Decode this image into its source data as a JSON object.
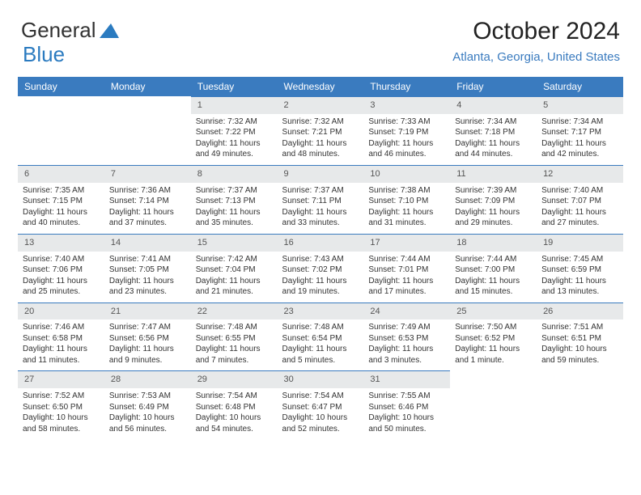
{
  "logo": {
    "text1": "General",
    "text2": "Blue"
  },
  "title": "October 2024",
  "location": "Atlanta, Georgia, United States",
  "colors": {
    "header_bg": "#3a7bbf",
    "header_text": "#ffffff",
    "daynum_bg": "#e7e9ea",
    "daynum_text": "#555555",
    "body_text": "#333333",
    "location_text": "#3a7bbf",
    "page_bg": "#ffffff"
  },
  "days_of_week": [
    "Sunday",
    "Monday",
    "Tuesday",
    "Wednesday",
    "Thursday",
    "Friday",
    "Saturday"
  ],
  "weeks": [
    [
      {
        "n": "",
        "body": ""
      },
      {
        "n": "",
        "body": ""
      },
      {
        "n": "1",
        "body": "Sunrise: 7:32 AM\nSunset: 7:22 PM\nDaylight: 11 hours and 49 minutes."
      },
      {
        "n": "2",
        "body": "Sunrise: 7:32 AM\nSunset: 7:21 PM\nDaylight: 11 hours and 48 minutes."
      },
      {
        "n": "3",
        "body": "Sunrise: 7:33 AM\nSunset: 7:19 PM\nDaylight: 11 hours and 46 minutes."
      },
      {
        "n": "4",
        "body": "Sunrise: 7:34 AM\nSunset: 7:18 PM\nDaylight: 11 hours and 44 minutes."
      },
      {
        "n": "5",
        "body": "Sunrise: 7:34 AM\nSunset: 7:17 PM\nDaylight: 11 hours and 42 minutes."
      }
    ],
    [
      {
        "n": "6",
        "body": "Sunrise: 7:35 AM\nSunset: 7:15 PM\nDaylight: 11 hours and 40 minutes."
      },
      {
        "n": "7",
        "body": "Sunrise: 7:36 AM\nSunset: 7:14 PM\nDaylight: 11 hours and 37 minutes."
      },
      {
        "n": "8",
        "body": "Sunrise: 7:37 AM\nSunset: 7:13 PM\nDaylight: 11 hours and 35 minutes."
      },
      {
        "n": "9",
        "body": "Sunrise: 7:37 AM\nSunset: 7:11 PM\nDaylight: 11 hours and 33 minutes."
      },
      {
        "n": "10",
        "body": "Sunrise: 7:38 AM\nSunset: 7:10 PM\nDaylight: 11 hours and 31 minutes."
      },
      {
        "n": "11",
        "body": "Sunrise: 7:39 AM\nSunset: 7:09 PM\nDaylight: 11 hours and 29 minutes."
      },
      {
        "n": "12",
        "body": "Sunrise: 7:40 AM\nSunset: 7:07 PM\nDaylight: 11 hours and 27 minutes."
      }
    ],
    [
      {
        "n": "13",
        "body": "Sunrise: 7:40 AM\nSunset: 7:06 PM\nDaylight: 11 hours and 25 minutes."
      },
      {
        "n": "14",
        "body": "Sunrise: 7:41 AM\nSunset: 7:05 PM\nDaylight: 11 hours and 23 minutes."
      },
      {
        "n": "15",
        "body": "Sunrise: 7:42 AM\nSunset: 7:04 PM\nDaylight: 11 hours and 21 minutes."
      },
      {
        "n": "16",
        "body": "Sunrise: 7:43 AM\nSunset: 7:02 PM\nDaylight: 11 hours and 19 minutes."
      },
      {
        "n": "17",
        "body": "Sunrise: 7:44 AM\nSunset: 7:01 PM\nDaylight: 11 hours and 17 minutes."
      },
      {
        "n": "18",
        "body": "Sunrise: 7:44 AM\nSunset: 7:00 PM\nDaylight: 11 hours and 15 minutes."
      },
      {
        "n": "19",
        "body": "Sunrise: 7:45 AM\nSunset: 6:59 PM\nDaylight: 11 hours and 13 minutes."
      }
    ],
    [
      {
        "n": "20",
        "body": "Sunrise: 7:46 AM\nSunset: 6:58 PM\nDaylight: 11 hours and 11 minutes."
      },
      {
        "n": "21",
        "body": "Sunrise: 7:47 AM\nSunset: 6:56 PM\nDaylight: 11 hours and 9 minutes."
      },
      {
        "n": "22",
        "body": "Sunrise: 7:48 AM\nSunset: 6:55 PM\nDaylight: 11 hours and 7 minutes."
      },
      {
        "n": "23",
        "body": "Sunrise: 7:48 AM\nSunset: 6:54 PM\nDaylight: 11 hours and 5 minutes."
      },
      {
        "n": "24",
        "body": "Sunrise: 7:49 AM\nSunset: 6:53 PM\nDaylight: 11 hours and 3 minutes."
      },
      {
        "n": "25",
        "body": "Sunrise: 7:50 AM\nSunset: 6:52 PM\nDaylight: 11 hours and 1 minute."
      },
      {
        "n": "26",
        "body": "Sunrise: 7:51 AM\nSunset: 6:51 PM\nDaylight: 10 hours and 59 minutes."
      }
    ],
    [
      {
        "n": "27",
        "body": "Sunrise: 7:52 AM\nSunset: 6:50 PM\nDaylight: 10 hours and 58 minutes."
      },
      {
        "n": "28",
        "body": "Sunrise: 7:53 AM\nSunset: 6:49 PM\nDaylight: 10 hours and 56 minutes."
      },
      {
        "n": "29",
        "body": "Sunrise: 7:54 AM\nSunset: 6:48 PM\nDaylight: 10 hours and 54 minutes."
      },
      {
        "n": "30",
        "body": "Sunrise: 7:54 AM\nSunset: 6:47 PM\nDaylight: 10 hours and 52 minutes."
      },
      {
        "n": "31",
        "body": "Sunrise: 7:55 AM\nSunset: 6:46 PM\nDaylight: 10 hours and 50 minutes."
      },
      {
        "n": "",
        "body": ""
      },
      {
        "n": "",
        "body": ""
      }
    ]
  ]
}
